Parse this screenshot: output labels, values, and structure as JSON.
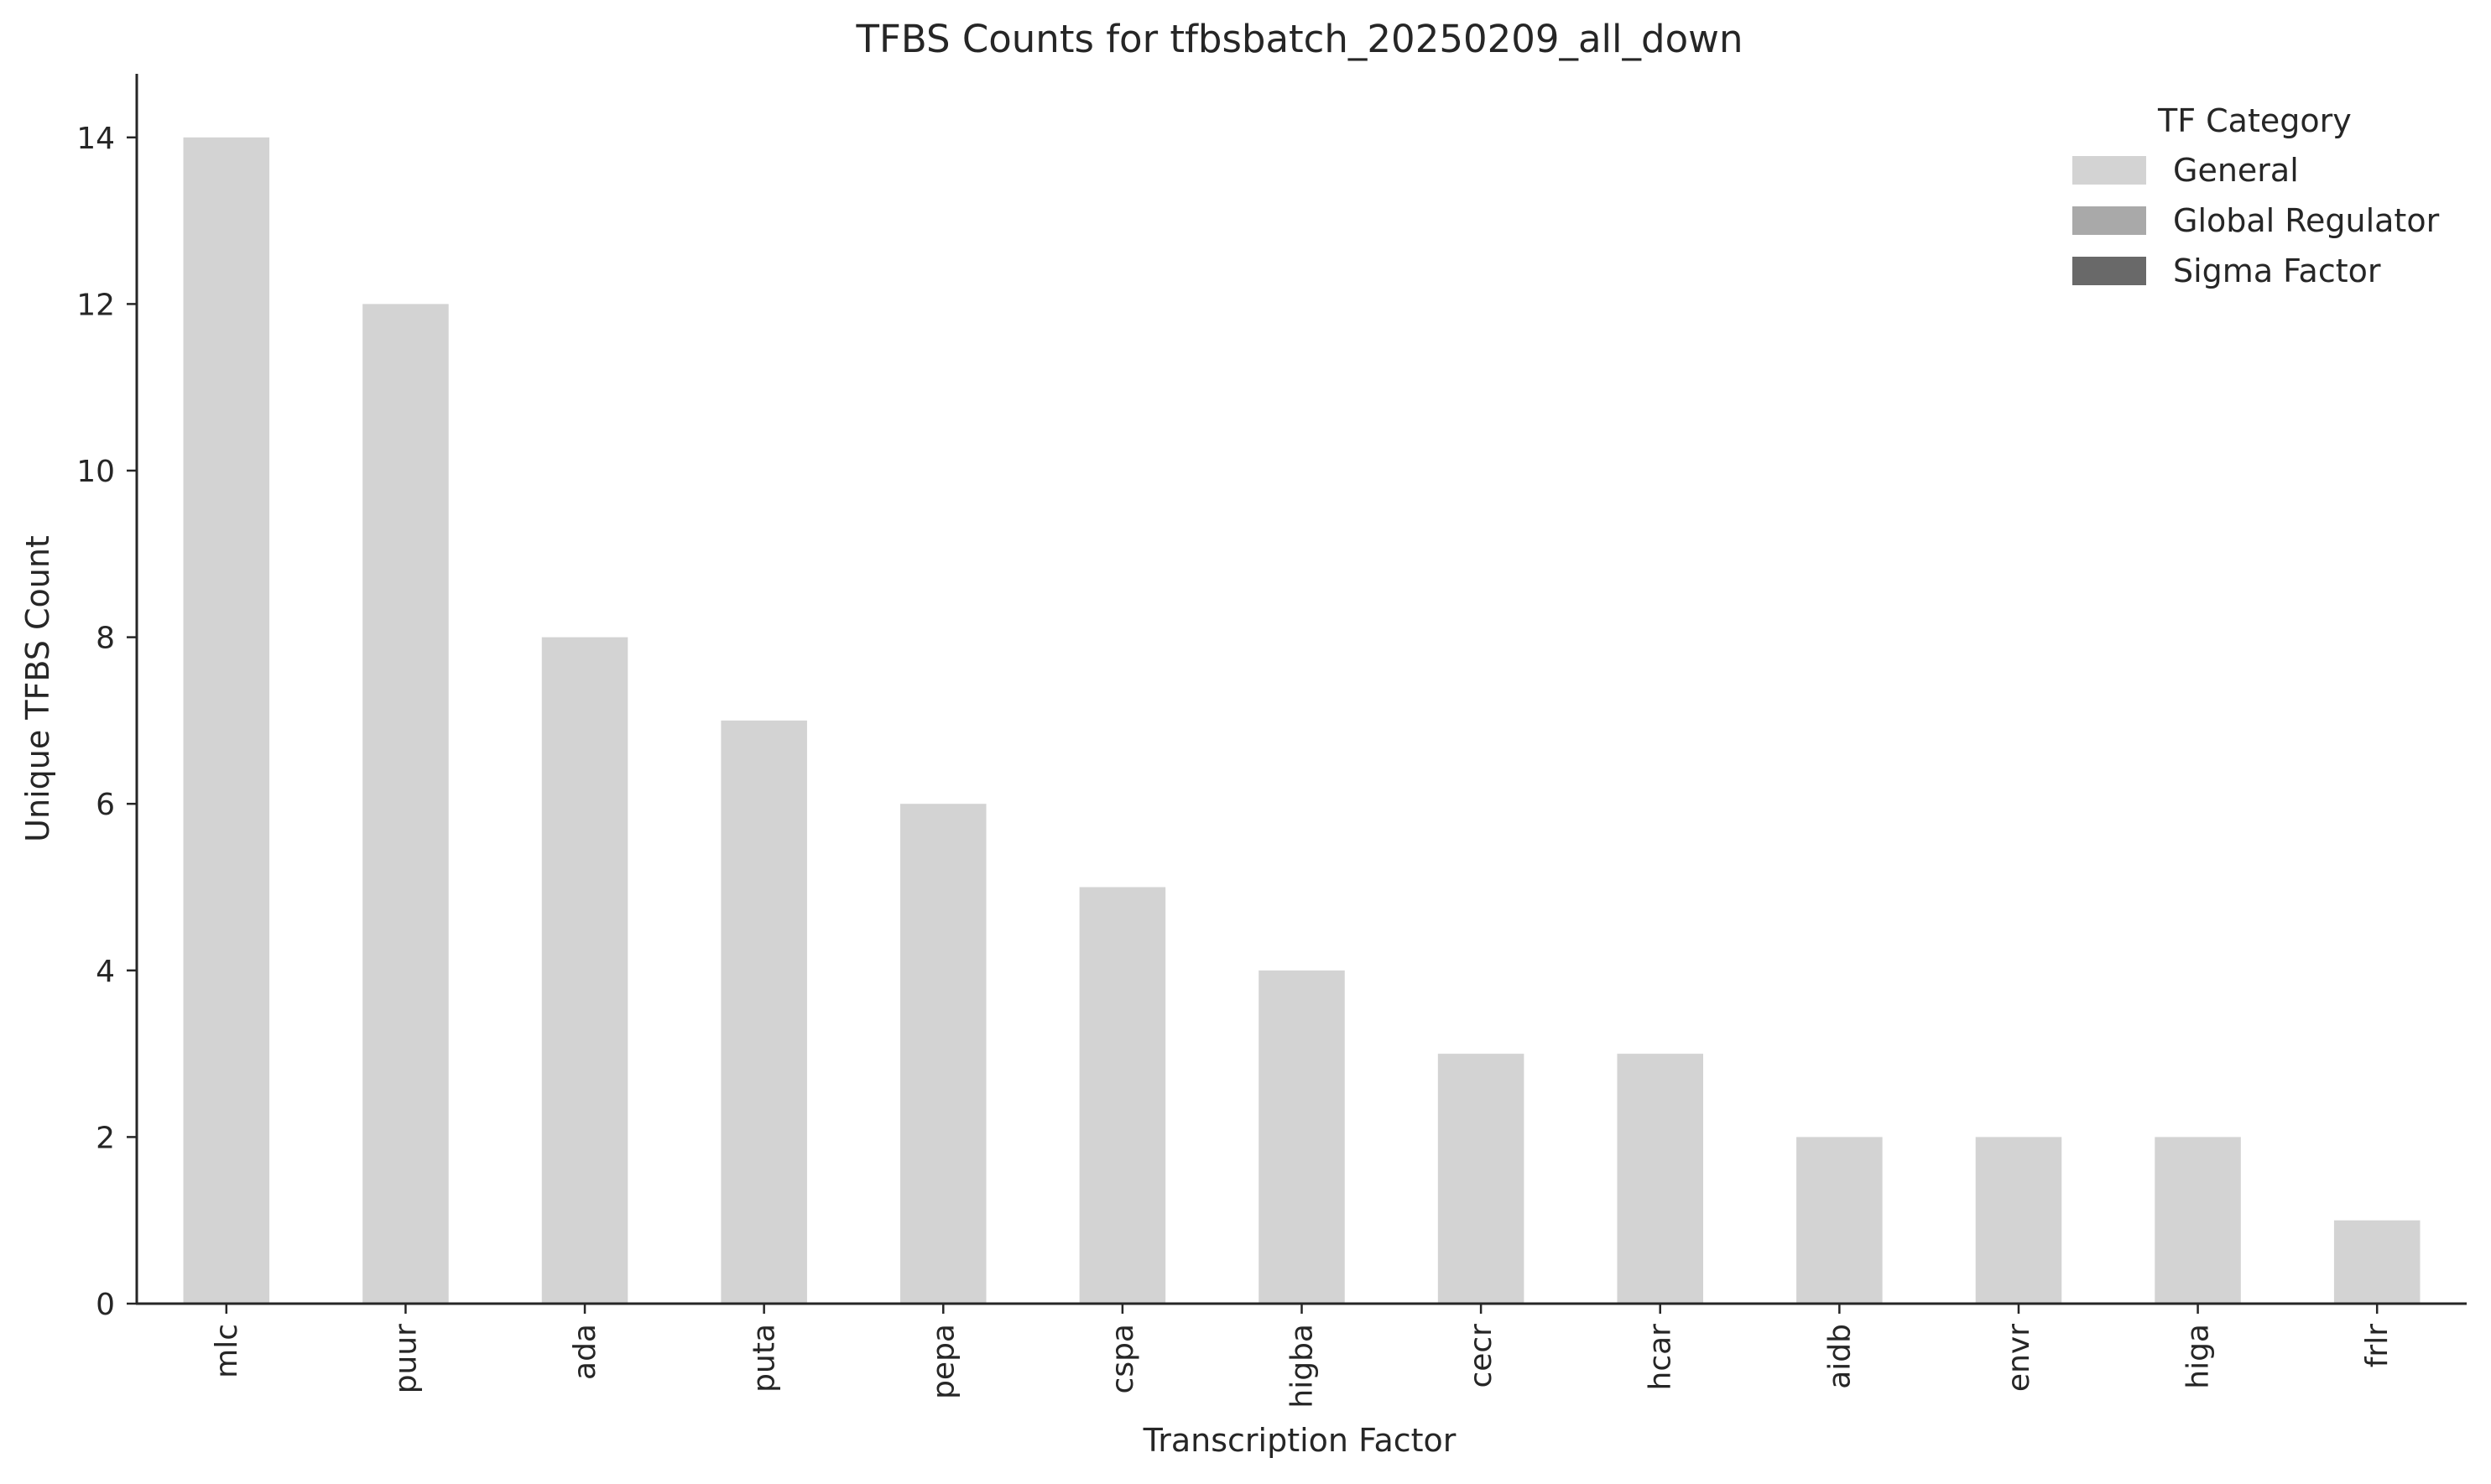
{
  "chart_data": {
    "type": "bar",
    "title": "TFBS Counts for tfbsbatch_20250209_all_down",
    "xlabel": "Transcription Factor",
    "ylabel": "Unique TFBS Count",
    "categories": [
      "mlc",
      "puur",
      "ada",
      "puta",
      "pepa",
      "cspa",
      "higba",
      "cecr",
      "hcar",
      "aidb",
      "envr",
      "higa",
      "frlr"
    ],
    "values": [
      14,
      12,
      8,
      7,
      6,
      5,
      4,
      3,
      3,
      2,
      2,
      2,
      1
    ],
    "bar_category": [
      "General",
      "General",
      "General",
      "General",
      "General",
      "General",
      "General",
      "General",
      "General",
      "General",
      "General",
      "General",
      "General"
    ],
    "ylim": [
      0,
      14.75
    ],
    "yticks": [
      0,
      2,
      4,
      6,
      8,
      10,
      12,
      14
    ],
    "grid": false,
    "legend": {
      "title": "TF Category",
      "placement": "top-right",
      "entries": [
        {
          "label": "General",
          "color": "#d3d3d3"
        },
        {
          "label": "Global Regulator",
          "color": "#a9a9a9"
        },
        {
          "label": "Sigma Factor",
          "color": "#696969"
        }
      ]
    }
  }
}
